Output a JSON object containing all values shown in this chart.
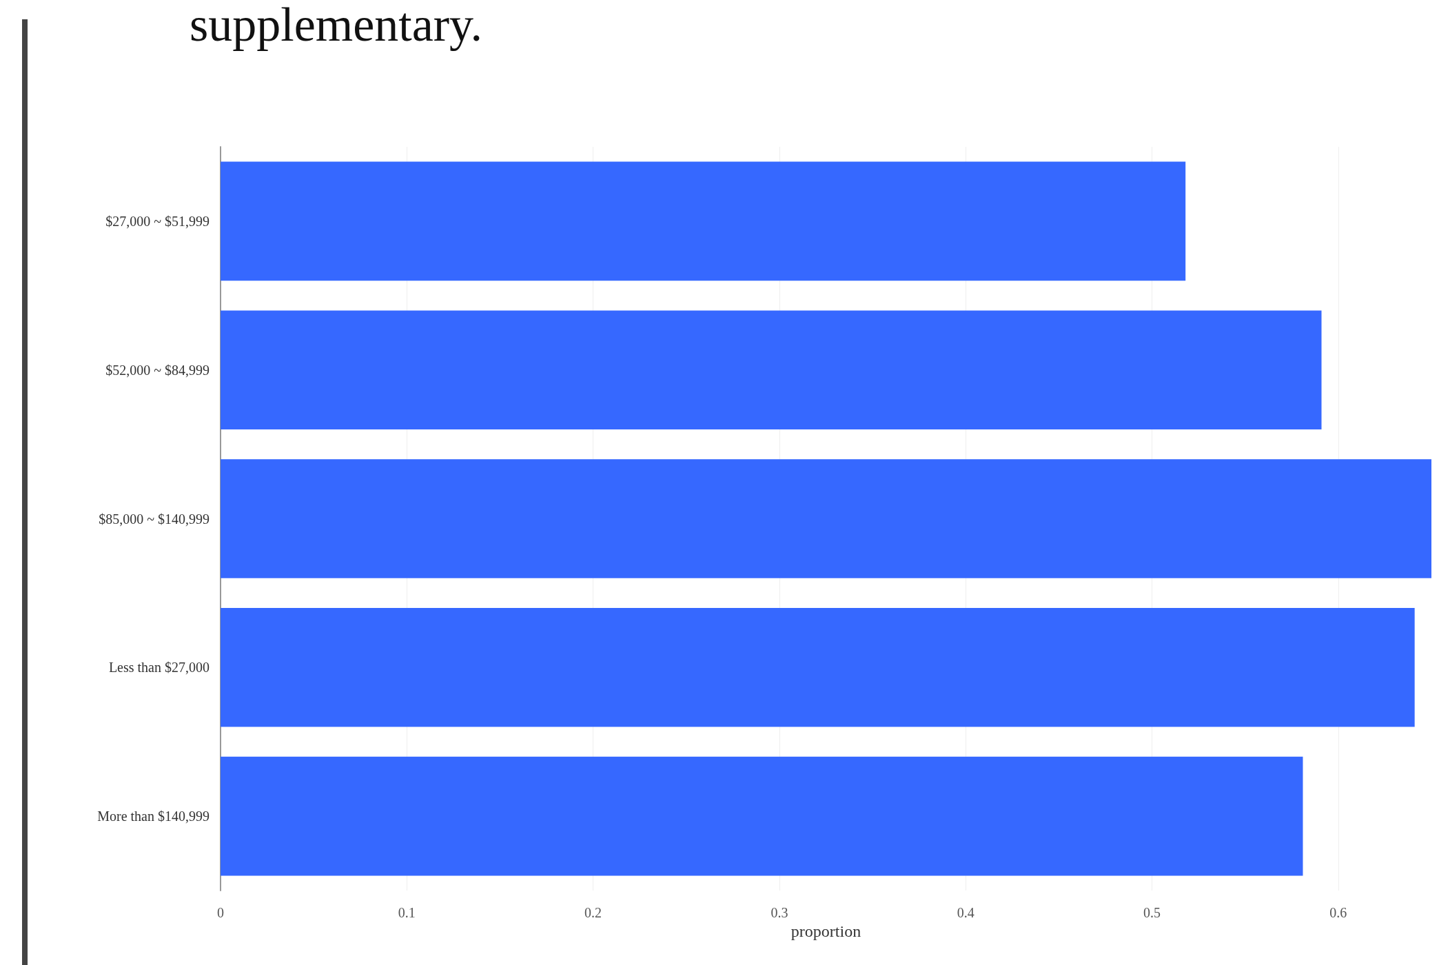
{
  "chart_data": {
    "type": "bar",
    "orientation": "horizontal",
    "annotations": [
      "supplementary."
    ],
    "categories": [
      "$27,000 ~ $51,999",
      "$52,000 ~ $84,999",
      "$85,000 ~ $140,999",
      "Less than $27,000",
      "More than $140,999"
    ],
    "values": [
      0.518,
      0.591,
      0.65,
      0.641,
      0.581
    ],
    "color": "#3668ff",
    "xlim": [
      0,
      0.65
    ],
    "xticks": [
      0,
      0.1,
      0.2,
      0.3,
      0.4,
      0.5,
      0.6
    ],
    "xlabel": "proportion",
    "grid": "x"
  }
}
